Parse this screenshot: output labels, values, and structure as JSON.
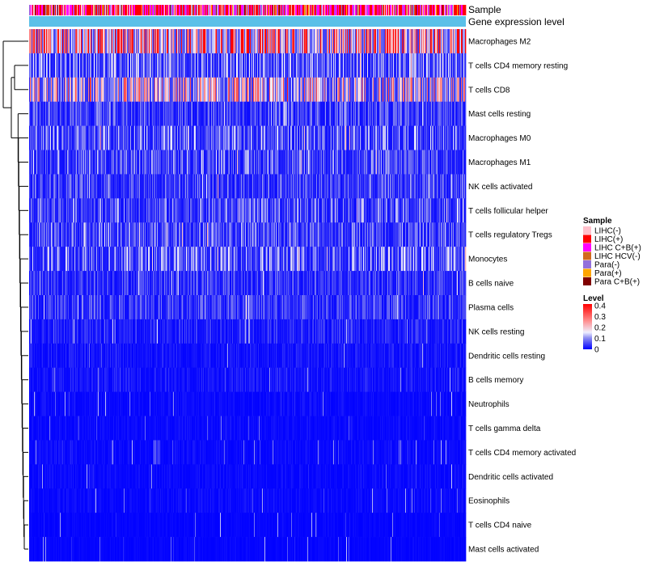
{
  "chart_data": {
    "type": "heatmap",
    "title": "",
    "column_annotations": [
      {
        "name": "Sample"
      },
      {
        "name": "Gene expression level",
        "color": "#5bc0e8"
      }
    ],
    "rows": [
      {
        "label": "Macrophages M2",
        "mean": 0.3
      },
      {
        "label": "T cells CD4 memory resting",
        "mean": 0.09
      },
      {
        "label": "T cells CD8",
        "mean": 0.18
      },
      {
        "label": "Mast cells resting",
        "mean": 0.06
      },
      {
        "label": "Macrophages M0",
        "mean": 0.08
      },
      {
        "label": "Macrophages M1",
        "mean": 0.07
      },
      {
        "label": "NK cells activated",
        "mean": 0.06
      },
      {
        "label": "T cells follicular helper",
        "mean": 0.07
      },
      {
        "label": "T cells regulatory  Tregs",
        "mean": 0.07
      },
      {
        "label": "Monocytes",
        "mean": 0.09
      },
      {
        "label": "B cells naive",
        "mean": 0.05
      },
      {
        "label": "Plasma cells",
        "mean": 0.05
      },
      {
        "label": "NK cells resting",
        "mean": 0.03
      },
      {
        "label": "Dendritic cells resting",
        "mean": 0.02
      },
      {
        "label": "B cells memory",
        "mean": 0.02
      },
      {
        "label": "Neutrophils",
        "mean": 0.01
      },
      {
        "label": "T cells gamma delta",
        "mean": 0.01
      },
      {
        "label": "T cells CD4 memory activated",
        "mean": 0.01
      },
      {
        "label": "Dendritic cells activated",
        "mean": 0.01
      },
      {
        "label": "Eosinophils",
        "mean": 0.01
      },
      {
        "label": "T cells CD4 naive",
        "mean": 0.005
      },
      {
        "label": "Mast cells activated",
        "mean": 0.005
      }
    ],
    "n_columns": 540,
    "color_scale": {
      "min": 0,
      "max": 0.4,
      "stops": [
        {
          "value": 0,
          "color": "#0000ff"
        },
        {
          "value": 0.1,
          "color": "#8c8cf0"
        },
        {
          "value": 0.15,
          "color": "#efefff"
        },
        {
          "value": 0.25,
          "color": "#ff9090"
        },
        {
          "value": 0.4,
          "color": "#ff0000"
        }
      ]
    },
    "legends": {
      "sample": {
        "title": "Sample",
        "items": [
          {
            "label": "LIHC(-)",
            "color": "#ffc0cb"
          },
          {
            "label": "LIHC(+)",
            "color": "#ff0000"
          },
          {
            "label": "LIHC C+B(+)",
            "color": "#ff00ff"
          },
          {
            "label": "LIHC HCV(-)",
            "color": "#d2691e"
          },
          {
            "label": "Para(-)",
            "color": "#9370db"
          },
          {
            "label": "Para(+)",
            "color": "#ffa500"
          },
          {
            "label": "Para C+B(+)",
            "color": "#800000"
          }
        ]
      },
      "level": {
        "title": "Level",
        "ticks": [
          "0.4",
          "0.3",
          "0.2",
          "0.1",
          "0"
        ]
      }
    }
  }
}
